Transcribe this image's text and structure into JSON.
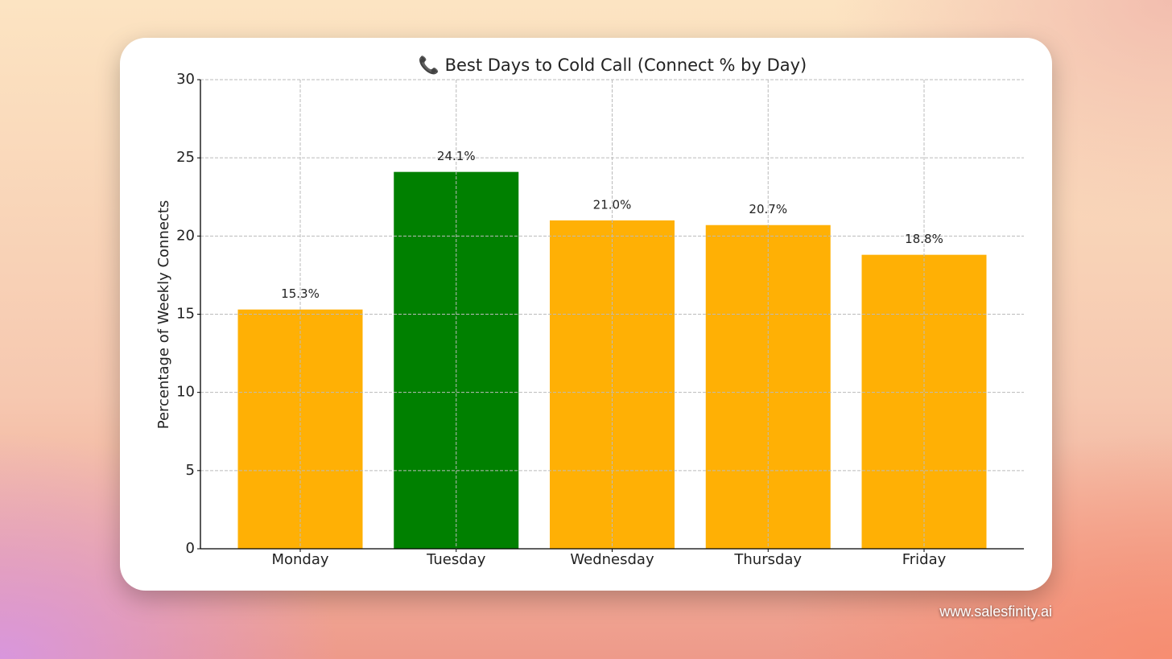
{
  "chart_data": {
    "type": "bar",
    "title": "📞 Best Days to Cold Call (Connect % by Day)",
    "ylabel": "Percentage of Weekly Connects",
    "categories": [
      "Monday",
      "Tuesday",
      "Wednesday",
      "Thursday",
      "Friday"
    ],
    "values": [
      15.3,
      24.1,
      21.0,
      20.7,
      18.8
    ],
    "value_labels": [
      "15.3%",
      "24.1%",
      "21.0%",
      "20.7%",
      "18.8%"
    ],
    "colors": [
      "#ffb005",
      "#008000",
      "#ffb005",
      "#ffb005",
      "#ffb005"
    ],
    "ylim": [
      0,
      30
    ],
    "yticks": [
      0,
      5,
      10,
      15,
      20,
      25,
      30
    ],
    "grid": true
  },
  "watermark": "www.salesfinity.ai"
}
